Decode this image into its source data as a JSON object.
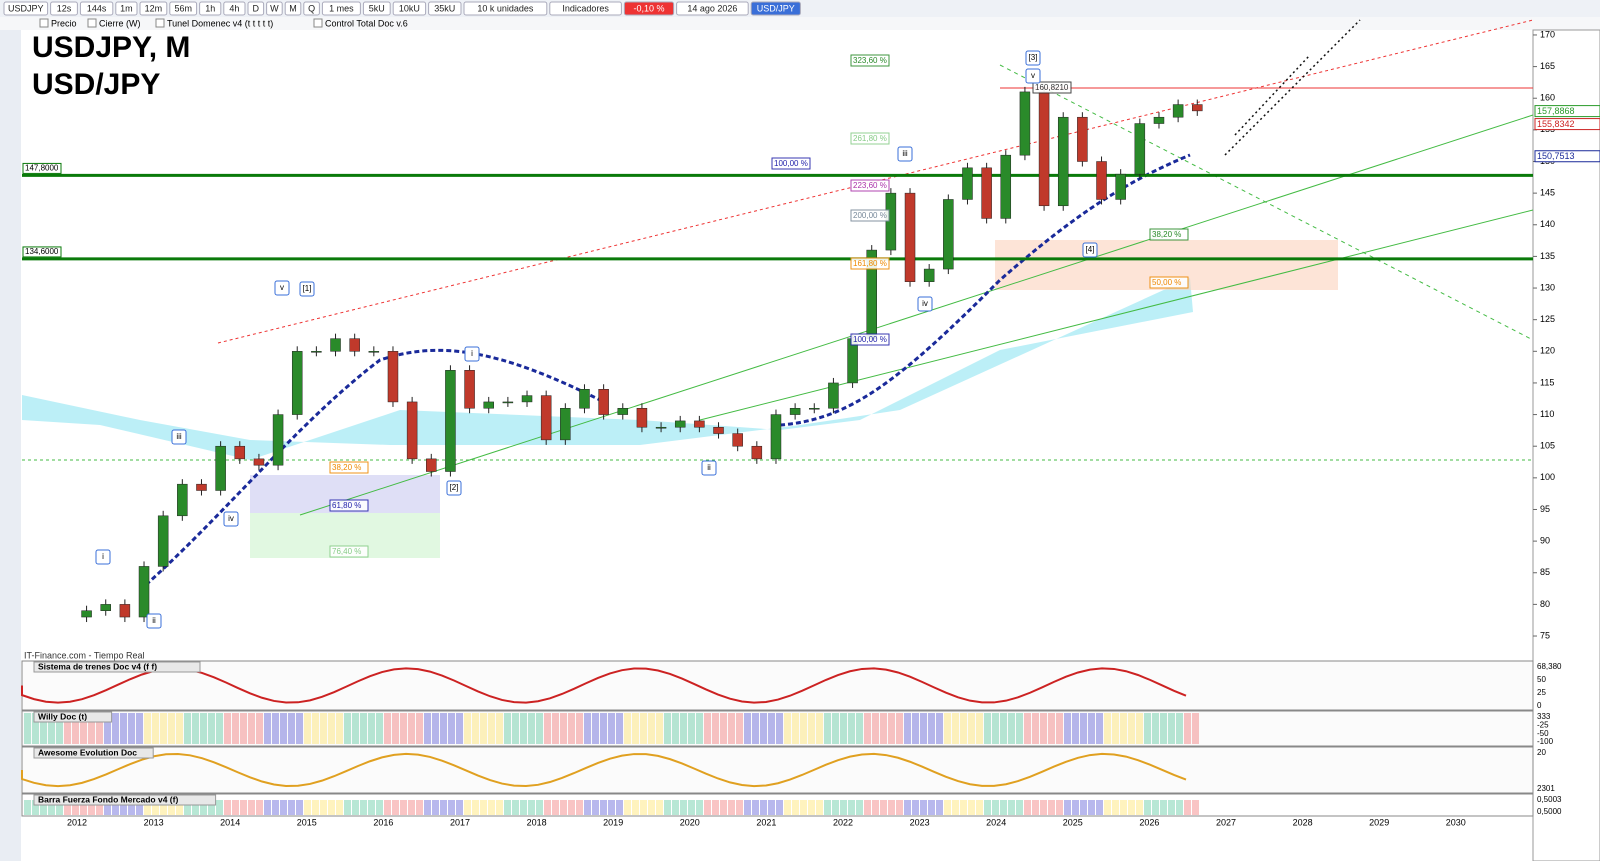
{
  "toolbar": [
    "USDJPY",
    "12s",
    "144s",
    "1m",
    "12m",
    "56m",
    "1h",
    "4h",
    "D",
    "W",
    "M",
    "Q",
    "1 mes",
    "5kU",
    "10kU",
    "35kU",
    "10 k unidades",
    "Indicadores",
    "-0,10 %",
    "14 ago 2026",
    "USD/JPY"
  ],
  "indicators": [
    "Precio",
    "Cierre (W)",
    "Tunel Domenec v4 (t t t t t)",
    "Control Total Doc v.6"
  ],
  "chart_data": {
    "type": "candlestick",
    "title": "USDJPY, M",
    "subtitle": "USD/JPY",
    "source": "IT-Finance.com - Tiempo Real",
    "x_labels": [
      "2012",
      "2013",
      "2014",
      "2015",
      "2016",
      "2017",
      "2018",
      "2019",
      "2020",
      "2021",
      "2022",
      "2023",
      "2024",
      "2025",
      "2026",
      "2027",
      "2028",
      "2029",
      "2030"
    ],
    "values": [
      79,
      80,
      78,
      86,
      94,
      99,
      98,
      105,
      103,
      102,
      110,
      120,
      120,
      122,
      120,
      120,
      112,
      103,
      101,
      117,
      111,
      112,
      112,
      113,
      106,
      111,
      114,
      110,
      111,
      108,
      108,
      109,
      108,
      107,
      105,
      103,
      110,
      111,
      111,
      115,
      122,
      136,
      145,
      131,
      133,
      144,
      149,
      141,
      151,
      161,
      143,
      157,
      150,
      144,
      148,
      156,
      157,
      159,
      158
    ],
    "ylim": [
      72,
      171.1
    ],
    "yticks": [
      75,
      80,
      85,
      90,
      95,
      100,
      105,
      110,
      115,
      120,
      125,
      130,
      135,
      140,
      145,
      150,
      155,
      160,
      165,
      170
    ],
    "levels": [
      {
        "value": 147.8,
        "label": "147,8000"
      },
      {
        "value": 134.6,
        "label": "134,6000"
      }
    ],
    "right_labels": [
      {
        "value": 157.8868,
        "label": "157,8868"
      },
      {
        "value": 155.8342,
        "label": "155,8342"
      },
      {
        "value": 150.7513,
        "label": "150,7513"
      }
    ],
    "fib_labels": [
      "323,60 %",
      "261,80 %",
      "223,60 %",
      "200,00 %",
      "161,80 %",
      "100,00 %",
      "100,00 %",
      "38,20 %",
      "50,00 %",
      "38,20 %",
      "61,80 %",
      "76,40 %",
      "160,8210"
    ],
    "wave_labels": [
      "i",
      "ii",
      "iii",
      "iv",
      "v",
      "[1]",
      "[2]",
      "i",
      "ii",
      "iii",
      "iv",
      "[3]",
      "v",
      "[4]"
    ]
  },
  "panels": [
    {
      "title": "Sistema de trenes Doc v4 (f f)",
      "scale": [
        "68,380",
        "50",
        "25",
        "0"
      ]
    },
    {
      "title": "Willy Doc (t)",
      "scale": [
        "333",
        "-25",
        "-50",
        "-100"
      ]
    },
    {
      "title": "Awesome Evolution Doc",
      "scale": [
        "20",
        "2301"
      ]
    },
    {
      "title": "Barra Fuerza Fondo Mercado v4 (f)",
      "scale": [
        "0,5003",
        "0,5000"
      ]
    }
  ]
}
